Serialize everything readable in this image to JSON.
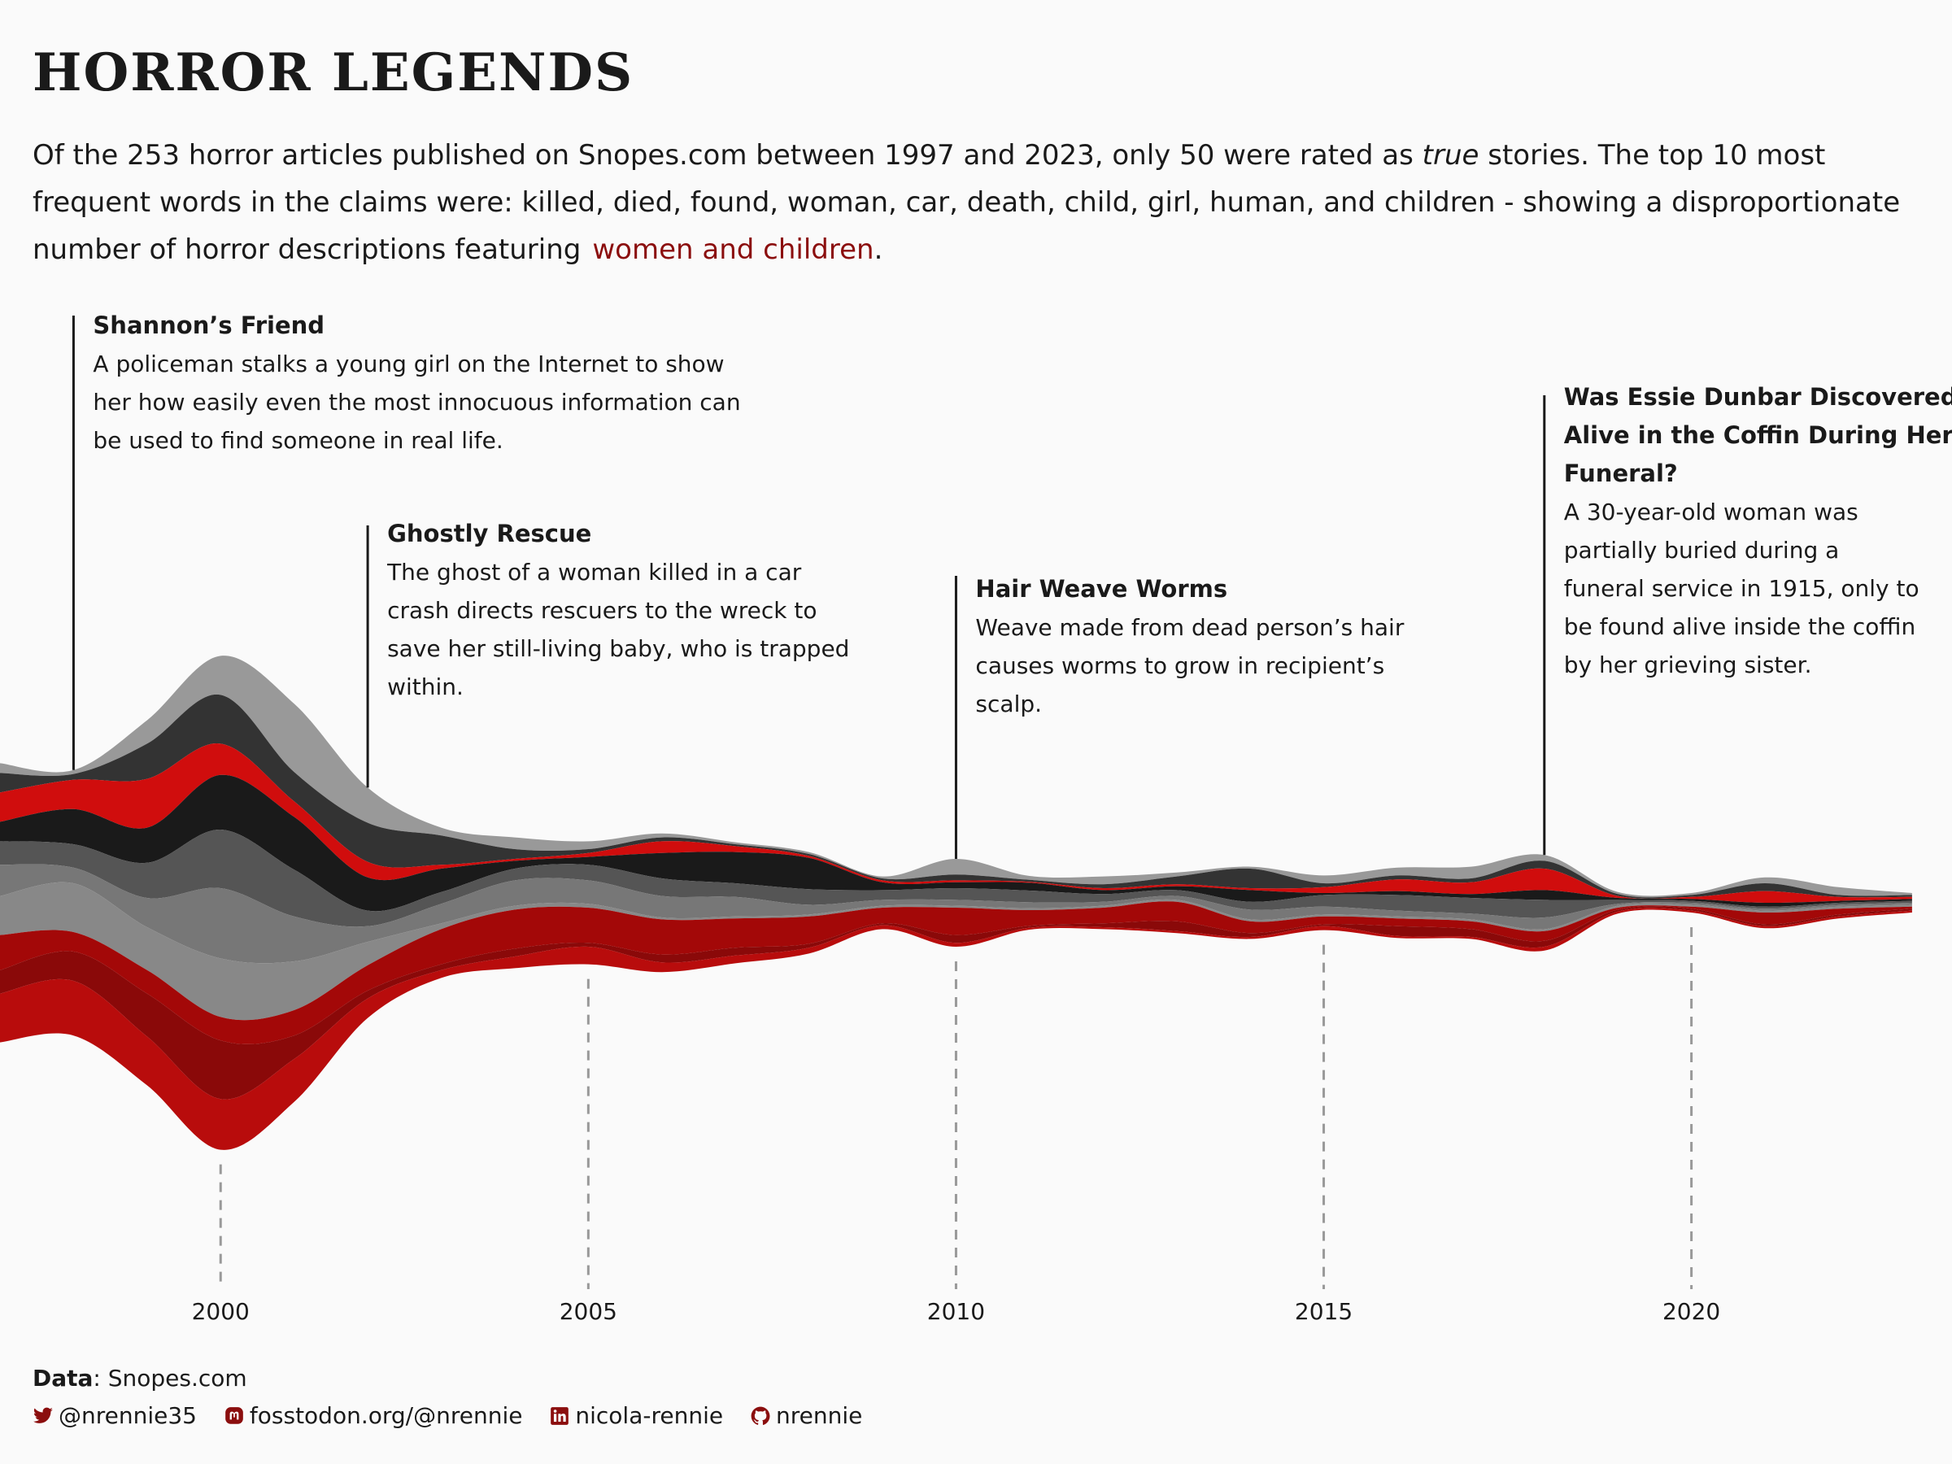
{
  "title": "HORROR LEGENDS",
  "subtitle": {
    "part1": "Of the 253 horror articles published on Snopes.com between 1997 and 2023, only 50 were rated as ",
    "emph": "true",
    "part2": " stories. The top 10 most frequent words in the claims were: killed, died, found, woman, car, death, child, girl, human, and children - showing a disproportionate number of horror descriptions featuring",
    "highlight": "women and children",
    "end": "."
  },
  "colors": {
    "background": "#fafafa",
    "accent": "#8b0e0e",
    "reds": [
      "#d00d0d",
      "#a30808",
      "#8a0909",
      "#b80c0c"
    ],
    "greys": [
      "#999999",
      "#333333",
      "#1a1a1a",
      "#555555",
      "#7a7a7a",
      "#666666"
    ]
  },
  "chart_data": {
    "type": "area",
    "subtype": "streamgraph",
    "x": [
      1997,
      1998,
      1999,
      2000,
      2001,
      2002,
      2003,
      2004,
      2005,
      2006,
      2007,
      2008,
      2009,
      2010,
      2011,
      2012,
      2013,
      2014,
      2015,
      2016,
      2017,
      2018,
      2019,
      2020,
      2021,
      2022,
      2023
    ],
    "xlim": [
      1997,
      2023.3
    ],
    "ticks": [
      2000,
      2005,
      2010,
      2015,
      2020
    ],
    "series": [
      {
        "name": "grey-light-top",
        "color": "#999999",
        "values": [
          0.5,
          0.2,
          1.2,
          2.0,
          3.5,
          1.8,
          0.4,
          0.6,
          0.4,
          0.2,
          0.1,
          0.1,
          0.1,
          0.8,
          0.2,
          0.4,
          0.2,
          0.1,
          0.4,
          0.4,
          0.6,
          0.3,
          0.1,
          0.1,
          0.3,
          0.4,
          0.1
        ]
      },
      {
        "name": "grey-dark",
        "color": "#333333",
        "values": [
          1.0,
          0.3,
          1.8,
          2.5,
          1.5,
          2.0,
          1.5,
          0.5,
          0.2,
          0.2,
          0.1,
          0.1,
          0.1,
          0.3,
          0.1,
          0.2,
          0.4,
          1.0,
          0.2,
          0.2,
          0.2,
          0.4,
          0.1,
          0.1,
          0.4,
          0.1,
          0.1
        ]
      },
      {
        "name": "red-top",
        "color": "#d00d0d",
        "values": [
          1.5,
          1.5,
          2.5,
          1.6,
          0.8,
          0.8,
          0.2,
          0.1,
          0.2,
          0.6,
          0.3,
          0.1,
          0.1,
          0.1,
          0.05,
          0.1,
          0.1,
          0.1,
          0.3,
          0.6,
          0.6,
          1.1,
          0.1,
          0.1,
          0.6,
          0.2,
          0.1
        ]
      },
      {
        "name": "grey-black",
        "color": "#1a1a1a",
        "values": [
          1.0,
          1.8,
          1.8,
          2.8,
          2.7,
          1.7,
          1.2,
          0.4,
          0.4,
          1.3,
          1.6,
          1.6,
          0.4,
          0.3,
          0.4,
          0.2,
          0.2,
          0.6,
          0.1,
          0.2,
          0.2,
          0.5,
          0.1,
          0.1,
          0.2,
          0.1,
          0.1
        ]
      },
      {
        "name": "grey-mid-dark",
        "color": "#555555",
        "values": [
          1.2,
          1.2,
          1.8,
          3.0,
          2.4,
          0.8,
          0.6,
          0.6,
          0.8,
          0.9,
          0.7,
          0.8,
          0.5,
          0.6,
          0.6,
          0.4,
          0.3,
          0.4,
          0.6,
          0.8,
          0.8,
          0.9,
          0.2,
          0.1,
          0.1,
          0.1,
          0.1
        ]
      },
      {
        "name": "grey-mid",
        "color": "#777777",
        "values": [
          1.6,
          0.8,
          1.5,
          3.6,
          2.3,
          0.8,
          1.0,
          1.3,
          1.2,
          1.1,
          1.0,
          0.5,
          0.3,
          0.3,
          0.3,
          0.2,
          0.2,
          0.5,
          0.4,
          0.3,
          0.3,
          0.6,
          0.1,
          0.1,
          0.1,
          0.1,
          0.1
        ]
      },
      {
        "name": "grey-light-lower",
        "color": "#888888",
        "values": [
          2.0,
          2.5,
          2.2,
          3.0,
          2.5,
          1.2,
          0.3,
          0.2,
          0.2,
          0.1,
          0.1,
          0.1,
          0.1,
          0.1,
          0.1,
          0.1,
          0.1,
          0.1,
          0.1,
          0.1,
          0.1,
          0.1,
          0.1,
          0.1,
          0.1,
          0.1,
          0.1
        ]
      },
      {
        "name": "red-dark",
        "color": "#a30808",
        "values": [
          1.8,
          1.0,
          1.2,
          1.2,
          1.3,
          1.3,
          1.8,
          2.0,
          1.8,
          1.8,
          1.5,
          1.4,
          0.8,
          1.4,
          0.8,
          0.8,
          1.0,
          0.6,
          0.4,
          0.4,
          0.4,
          0.5,
          0.1,
          0.1,
          0.6,
          0.3,
          0.1
        ]
      },
      {
        "name": "red-deep",
        "color": "#8a0909",
        "values": [
          1.2,
          1.5,
          2.2,
          3.0,
          1.2,
          0.4,
          0.3,
          0.4,
          0.2,
          0.4,
          0.4,
          0.2,
          0.1,
          0.4,
          0.1,
          0.2,
          0.5,
          0.2,
          0.1,
          0.5,
          0.4,
          0.3,
          0.1,
          0.1,
          0.1,
          0.1,
          0.1
        ]
      },
      {
        "name": "red-bottom",
        "color": "#b80c0c",
        "values": [
          2.5,
          2.8,
          2.5,
          2.6,
          2.2,
          1.0,
          0.4,
          0.6,
          0.9,
          0.5,
          0.4,
          0.3,
          0.2,
          0.2,
          0.1,
          0.1,
          0.1,
          0.1,
          0.2,
          0.1,
          0.1,
          0.2,
          0.1,
          0.1,
          0.1,
          0.1,
          0.1
        ]
      }
    ],
    "annotations": [
      {
        "year": 1998,
        "title": "Shannon’s Friend",
        "lines": [
          "A policeman stalks a young girl on the Internet to show",
          "her how easily even the most innocuous information can",
          "be used to find someone in real life."
        ]
      },
      {
        "year": 2002,
        "title": "Ghostly Rescue",
        "lines": [
          "The ghost of a woman killed in a car",
          "crash directs rescuers to the wreck to",
          "save her still-living baby, who is trapped",
          "within."
        ]
      },
      {
        "year": 2010,
        "title": "Hair Weave Worms",
        "lines": [
          "Weave made from dead person’s hair",
          "causes worms to grow in recipient’s",
          "scalp."
        ]
      },
      {
        "year": 2018,
        "titleLines": [
          "Was Essie Dunbar Discovered",
          "Alive in the Coffin During Her",
          "Funeral?"
        ],
        "lines": [
          "A 30-year-old woman was",
          "partially buried during a",
          "funeral service in 1915, only to",
          "be found alive inside the coffin",
          "by her grieving sister."
        ]
      }
    ]
  },
  "caption": {
    "data_label": "Data",
    "data_value": ": Snopes.com",
    "twitter": "@nrennie35",
    "mastodon": "fosstodon.org/@nrennie",
    "linkedin": "nicola-rennie",
    "github": "nrennie",
    "icons": [
      "twitter-icon",
      "mastodon-icon",
      "linkedin-icon",
      "github-icon"
    ]
  }
}
